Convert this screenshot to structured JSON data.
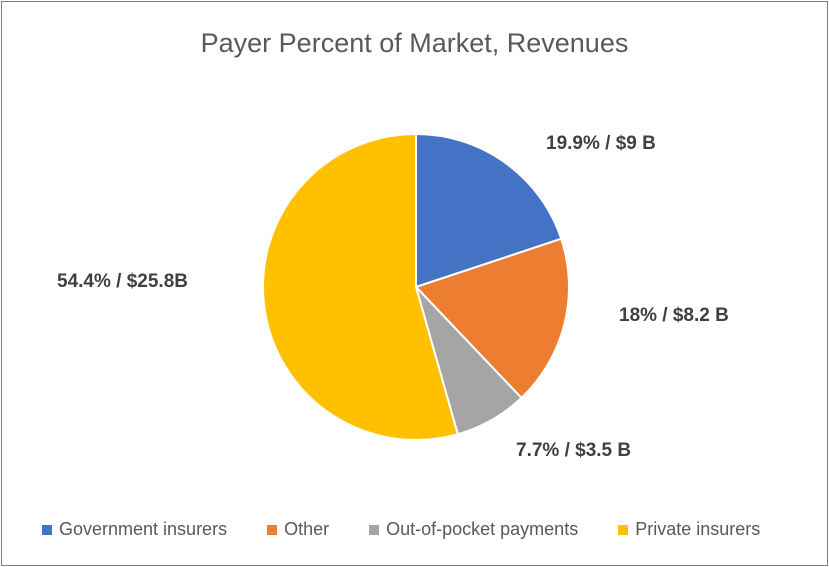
{
  "chart_data": {
    "type": "pie",
    "title": "Payer Percent of Market, Revenues",
    "slices": [
      {
        "name": "Government insurers",
        "percent": 19.9,
        "value_label": "19.9% / $9 B",
        "color": "#4472c4"
      },
      {
        "name": "Other",
        "percent": 18.0,
        "value_label": "18% / $8.2 B",
        "color": "#ed7d31"
      },
      {
        "name": "Out-of-pocket payments",
        "percent": 7.7,
        "value_label": "7.7% / $3.5 B",
        "color": "#a5a5a5"
      },
      {
        "name": "Private insurers",
        "percent": 54.4,
        "value_label": "54.4% / $25.8B",
        "color": "#ffc000"
      }
    ],
    "legend_position": "bottom"
  }
}
